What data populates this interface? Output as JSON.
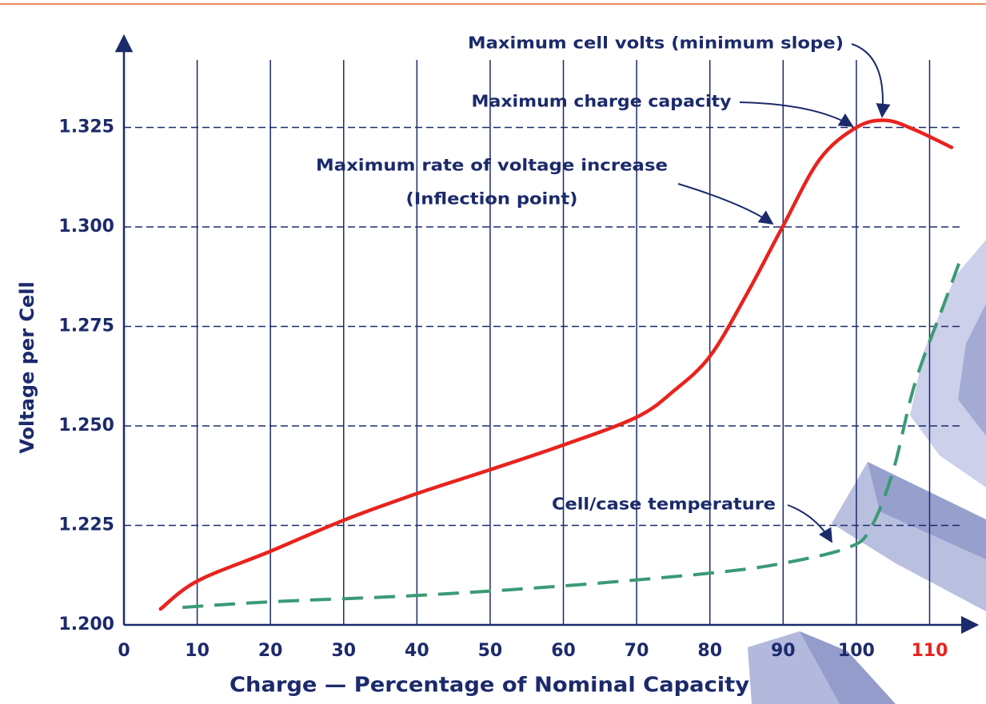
{
  "chart_data": {
    "type": "line",
    "x_label": "Charge — Percentage of Nominal Capacity",
    "y_label": "Voltage per Cell",
    "xlim": [
      0,
      116.5
    ],
    "ylim": [
      1.2,
      1.348
    ],
    "xticks": [
      0,
      10,
      20,
      30,
      40,
      50,
      60,
      70,
      80,
      90,
      100,
      110
    ],
    "yticks": [
      {
        "value": 1.2,
        "label": "1.200"
      },
      {
        "value": 1.225,
        "label": "1.225"
      },
      {
        "value": 1.25,
        "label": "1.250"
      },
      {
        "value": 1.275,
        "label": "1.275"
      },
      {
        "value": 1.3,
        "label": "1.300"
      },
      {
        "value": 1.325,
        "label": "1.325"
      }
    ],
    "grid": true,
    "highlighted_xtick": 110,
    "highlight_color": "#e8231e",
    "series": [
      {
        "color": "#e8231e",
        "dashed": false,
        "x": [
          5,
          10,
          20,
          30,
          40,
          50,
          60,
          70,
          75,
          80,
          85,
          90,
          95,
          100,
          104,
          108,
          113
        ],
        "values": [
          1.204,
          1.211,
          1.2185,
          1.2263,
          1.233,
          1.239,
          1.2452,
          1.2522,
          1.2587,
          1.2675,
          1.283,
          1.3003,
          1.317,
          1.325,
          1.3268,
          1.3244,
          1.32
        ]
      },
      {
        "color": "#3a9a74",
        "dashed": true,
        "x": [
          8,
          20,
          40,
          60,
          80,
          90,
          99,
          102,
          105,
          108,
          112,
          114
        ],
        "values": [
          1.2044,
          1.2058,
          1.2074,
          1.2098,
          1.213,
          1.2155,
          1.2195,
          1.2245,
          1.2386,
          1.2607,
          1.2808,
          1.2908
        ]
      }
    ],
    "annotations": [
      "Maximum cell volts (minimum slope)",
      "Maximum charge capacity",
      "Maximum rate of voltage increase",
      "(Inflection point)",
      "Cell/case temperature"
    ]
  }
}
